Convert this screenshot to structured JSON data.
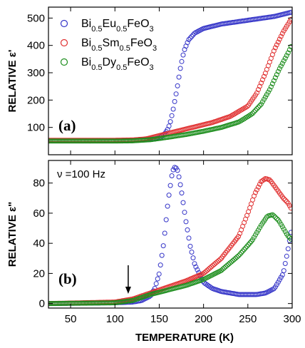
{
  "chart_data": [
    {
      "type": "scatter",
      "panel_label": "(a)",
      "ylabel": "RELATIVE ε'",
      "xlabel": "",
      "xlim": [
        25,
        300
      ],
      "ylim": [
        0,
        540
      ],
      "xticks": [
        "50",
        "100",
        "150",
        "200",
        "250",
        "300"
      ],
      "yticks": [
        "100",
        "200",
        "300",
        "400",
        "500"
      ],
      "legend_position": "top-right",
      "series": [
        {
          "name": "Bi0.5Eu0.5FeO3",
          "name_parts": [
            [
              "Bi",
              "0.5"
            ],
            [
              "Eu",
              "0.5"
            ],
            [
              "FeO",
              "3"
            ]
          ],
          "color": "#3535c8",
          "x": [
            25,
            100,
            130,
            145,
            150,
            155,
            160,
            163,
            166,
            170,
            174,
            178,
            183,
            190,
            200,
            220,
            250,
            280,
            300
          ],
          "y": [
            52,
            52,
            54,
            58,
            62,
            72,
            95,
            125,
            170,
            240,
            320,
            380,
            420,
            445,
            462,
            478,
            492,
            506,
            522
          ]
        },
        {
          "name": "Bi0.5Sm0.5FeO3",
          "name_parts": [
            [
              "Bi",
              "0.5"
            ],
            [
              "Sm",
              "0.5"
            ],
            [
              "FeO",
              "3"
            ]
          ],
          "color": "#e03030",
          "x": [
            25,
            100,
            120,
            135,
            150,
            170,
            190,
            210,
            230,
            250,
            260,
            270,
            280,
            290,
            300
          ],
          "y": [
            53,
            53,
            54,
            58,
            70,
            86,
            102,
            118,
            140,
            178,
            225,
            300,
            385,
            450,
            502
          ]
        },
        {
          "name": "Bi0.5Dy0.5FeO3",
          "name_parts": [
            [
              "Bi",
              "0.5"
            ],
            [
              "Dy",
              "0.5"
            ],
            [
              "FeO",
              "3"
            ]
          ],
          "color": "#1e8e1e",
          "x": [
            25,
            100,
            120,
            140,
            160,
            180,
            200,
            220,
            240,
            255,
            265,
            275,
            285,
            295,
            300
          ],
          "y": [
            50,
            50,
            51,
            55,
            64,
            74,
            86,
            100,
            120,
            150,
            185,
            240,
            310,
            370,
            405
          ]
        }
      ]
    },
    {
      "type": "scatter",
      "panel_label": "(b)",
      "annotation": "ν =100 Hz",
      "arrow_at_x": 115,
      "ylabel": "RELATIVE ε\"",
      "xlabel": "TEMPERATURE (K)",
      "xlim": [
        25,
        300
      ],
      "ylim": [
        -3,
        95
      ],
      "xticks": [
        "50",
        "100",
        "150",
        "200",
        "250",
        "300"
      ],
      "yticks": [
        "0",
        "20",
        "40",
        "60",
        "80"
      ],
      "series": [
        {
          "name": "Bi0.5Eu0.5FeO3",
          "color": "#3535c8",
          "x": [
            25,
            100,
            120,
            130,
            140,
            145,
            150,
            155,
            160,
            165,
            168,
            171,
            175,
            180,
            185,
            190,
            200,
            210,
            220,
            240,
            260,
            270,
            280,
            290,
            295,
            300
          ],
          "y": [
            0,
            0.5,
            1,
            2,
            5,
            10,
            20,
            40,
            68,
            88,
            91,
            88,
            75,
            55,
            38,
            26,
            14,
            10,
            8,
            6,
            6,
            7,
            10,
            20,
            35,
            52
          ]
        },
        {
          "name": "Bi0.5Sm0.5FeO3",
          "color": "#e03030",
          "x": [
            25,
            100,
            120,
            140,
            160,
            180,
            200,
            220,
            240,
            250,
            258,
            265,
            270,
            275,
            280,
            285,
            290,
            295,
            300
          ],
          "y": [
            0,
            1,
            3,
            7,
            11,
            15,
            20,
            30,
            45,
            60,
            73,
            81,
            83,
            82,
            78,
            74,
            70,
            67,
            62
          ]
        },
        {
          "name": "Bi0.5Dy0.5FeO3",
          "color": "#1e8e1e",
          "x": [
            25,
            100,
            120,
            140,
            160,
            180,
            200,
            220,
            240,
            255,
            265,
            272,
            278,
            285,
            290,
            295,
            300
          ],
          "y": [
            0,
            0.5,
            2,
            6,
            9,
            12,
            16,
            22,
            32,
            42,
            52,
            58,
            59,
            55,
            50,
            45,
            42
          ]
        }
      ]
    }
  ]
}
